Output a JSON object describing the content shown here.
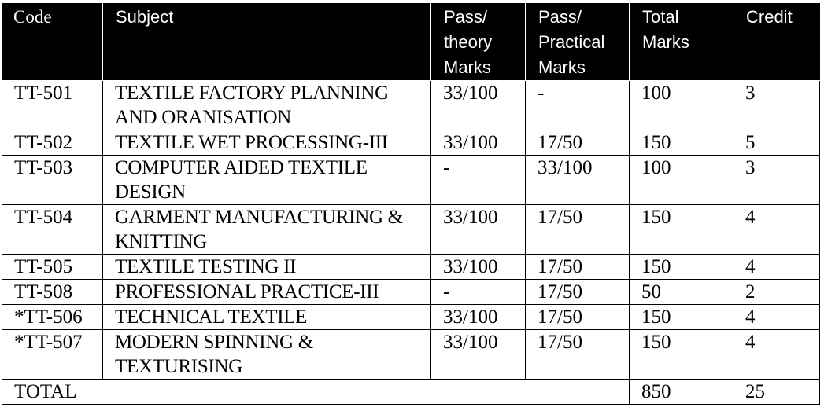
{
  "headers": [
    "Code",
    "Subject",
    "Pass/ theory Marks",
    "Pass/ Practical Marks",
    "Total Marks",
    "Credit"
  ],
  "rows": [
    {
      "code": "TT-501",
      "subject": "TEXTILE FACTORY PLANNING AND ORANISATION",
      "theory": "33/100",
      "practical": "-",
      "total": "100",
      "credit": "3"
    },
    {
      "code": "TT-502",
      "subject": "TEXTILE WET PROCESSING-III",
      "theory": "33/100",
      "practical": "17/50",
      "total": "150",
      "credit": "5"
    },
    {
      "code": "TT-503",
      "subject": "COMPUTER AIDED TEXTILE DESIGN",
      "theory": "-",
      "practical": "33/100",
      "total": "100",
      "credit": "3"
    },
    {
      "code": "TT-504",
      "subject": "GARMENT MANUFACTURING & KNITTING",
      "theory": "33/100",
      "practical": "17/50",
      "total": "150",
      "credit": "4"
    },
    {
      "code": "TT-505",
      "subject": "TEXTILE TESTING II",
      "theory": "33/100",
      "practical": "17/50",
      "total": "150",
      "credit": "4"
    },
    {
      "code": "TT-508",
      "subject": "PROFESSIONAL PRACTICE-III",
      "theory": "-",
      "practical": "17/50",
      "total": "50",
      "credit": "2"
    },
    {
      "code": "*TT-506",
      "subject": "TECHNICAL TEXTILE",
      "theory": "33/100",
      "practical": "17/50",
      "total": "150",
      "credit": "4"
    },
    {
      "code": "*TT-507",
      "subject": "MODERN SPINNING & TEXTURISING",
      "theory": "33/100",
      "practical": "17/50",
      "total": "150",
      "credit": "4"
    }
  ],
  "total_row": {
    "label": "TOTAL",
    "total": "850",
    "credit": "25"
  }
}
